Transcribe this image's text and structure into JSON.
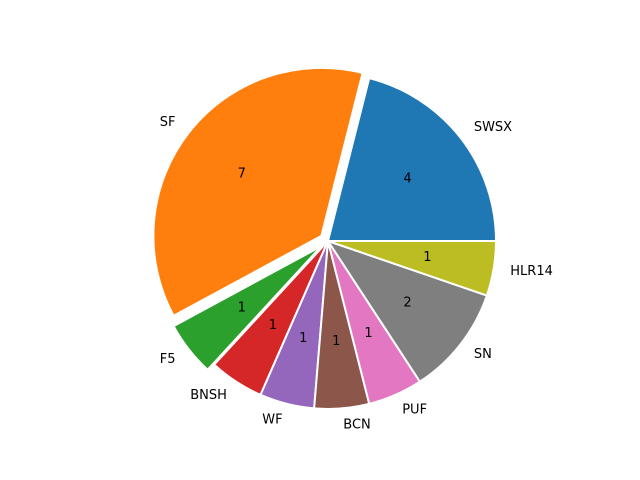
{
  "chart_data": {
    "type": "pie",
    "categories": [
      "SWSX",
      "SF",
      "F5",
      "BNSH",
      "WF",
      "BCN",
      "PUF",
      "SN",
      "HLR14"
    ],
    "values": [
      4,
      7,
      1,
      1,
      1,
      1,
      1,
      2,
      1
    ],
    "colors": [
      "#1f77b4",
      "#ff7f0e",
      "#2ca02c",
      "#d62728",
      "#9467bd",
      "#8c564b",
      "#e377c2",
      "#7f7f7f",
      "#bcbd22"
    ],
    "explode": [
      0,
      0.05,
      0.05,
      0,
      0,
      0,
      0,
      0,
      0
    ]
  }
}
